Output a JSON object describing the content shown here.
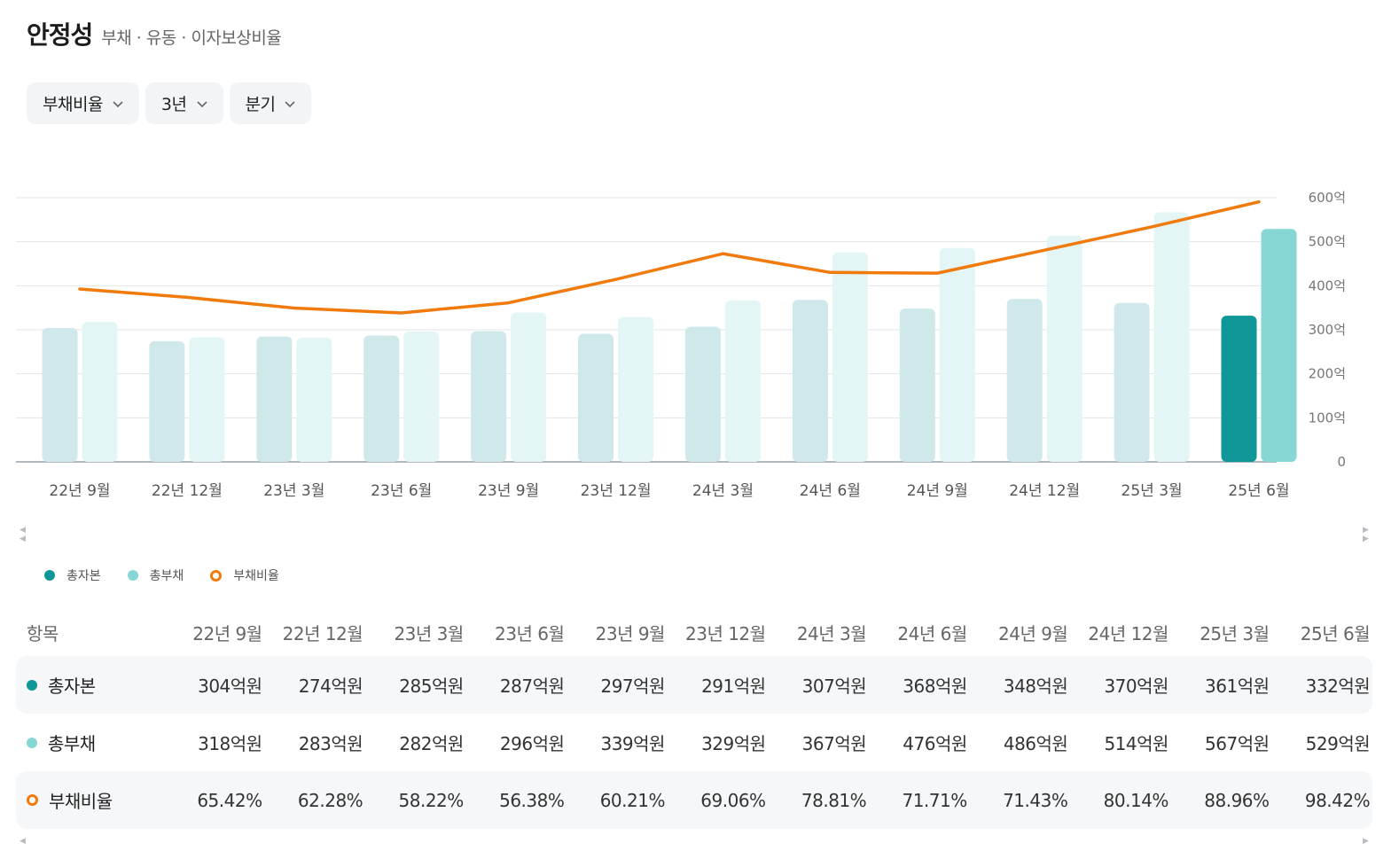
{
  "header": {
    "title": "안정성",
    "subtitle": "부채 · 유동 · 이자보상비율"
  },
  "filters": [
    {
      "label": "부채비율"
    },
    {
      "label": "3년"
    },
    {
      "label": "분기"
    }
  ],
  "colors": {
    "equity_active": "#0f9696",
    "liability_active": "#86d6d6",
    "equity_inactive": "#cfe8ea",
    "liability_inactive": "#e4f5f5",
    "ratio_line": "#f07a0c"
  },
  "chart_data": {
    "type": "bar",
    "categories": [
      "22년 9월",
      "22년 12월",
      "23년 3월",
      "23년 6월",
      "23년 9월",
      "23년 12월",
      "24년 3월",
      "24년 6월",
      "24년 9월",
      "24년 12월",
      "25년 3월",
      "25년 6월"
    ],
    "series": [
      {
        "name": "총자본",
        "values": [
          304,
          274,
          285,
          287,
          297,
          291,
          307,
          368,
          348,
          370,
          361,
          332
        ],
        "unit": "억원"
      },
      {
        "name": "총부채",
        "values": [
          318,
          283,
          282,
          296,
          339,
          329,
          367,
          476,
          486,
          514,
          567,
          529
        ],
        "unit": "억원"
      },
      {
        "name": "부채비율",
        "type": "line",
        "values": [
          65.42,
          62.28,
          58.22,
          56.38,
          60.21,
          69.06,
          78.81,
          71.71,
          71.43,
          80.14,
          88.96,
          98.42
        ],
        "unit": "%"
      }
    ],
    "y_axis": {
      "ticks": [
        "600억",
        "500억",
        "400억",
        "300억",
        "200억",
        "100억",
        "0"
      ],
      "ylim": [
        0,
        600
      ],
      "position": "right"
    },
    "ratio_axis_range": [
      0,
      100
    ],
    "highlight_index": 11,
    "grid": true
  },
  "legend": [
    {
      "label": "총자본",
      "marker": "dot",
      "color": "#0f9696"
    },
    {
      "label": "총부채",
      "marker": "dot",
      "color": "#86d6d6"
    },
    {
      "label": "부채비율",
      "marker": "ring",
      "color": "#f07a0c"
    }
  ],
  "table": {
    "header_label": "항목",
    "columns": [
      "22년 9월",
      "22년 12월",
      "23년 3월",
      "23년 6월",
      "23년 9월",
      "23년 12월",
      "24년 3월",
      "24년 6월",
      "24년 9월",
      "24년 12월",
      "25년 3월",
      "25년 6월"
    ],
    "rows": [
      {
        "label": "총자본",
        "marker": "dot",
        "color": "#0f9696",
        "values": [
          "304억원",
          "274억원",
          "285억원",
          "287억원",
          "297억원",
          "291억원",
          "307억원",
          "368억원",
          "348억원",
          "370억원",
          "361억원",
          "332억원"
        ]
      },
      {
        "label": "총부채",
        "marker": "dot",
        "color": "#86d6d6",
        "values": [
          "318억원",
          "283억원",
          "282억원",
          "296억원",
          "339억원",
          "329억원",
          "367억원",
          "476억원",
          "486억원",
          "514억원",
          "567억원",
          "529억원"
        ]
      },
      {
        "label": "부채비율",
        "marker": "ring",
        "color": "#f07a0c",
        "values": [
          "65.42%",
          "62.28%",
          "58.22%",
          "56.38%",
          "60.21%",
          "69.06%",
          "78.81%",
          "71.71%",
          "71.43%",
          "80.14%",
          "88.96%",
          "98.42%"
        ]
      }
    ]
  }
}
